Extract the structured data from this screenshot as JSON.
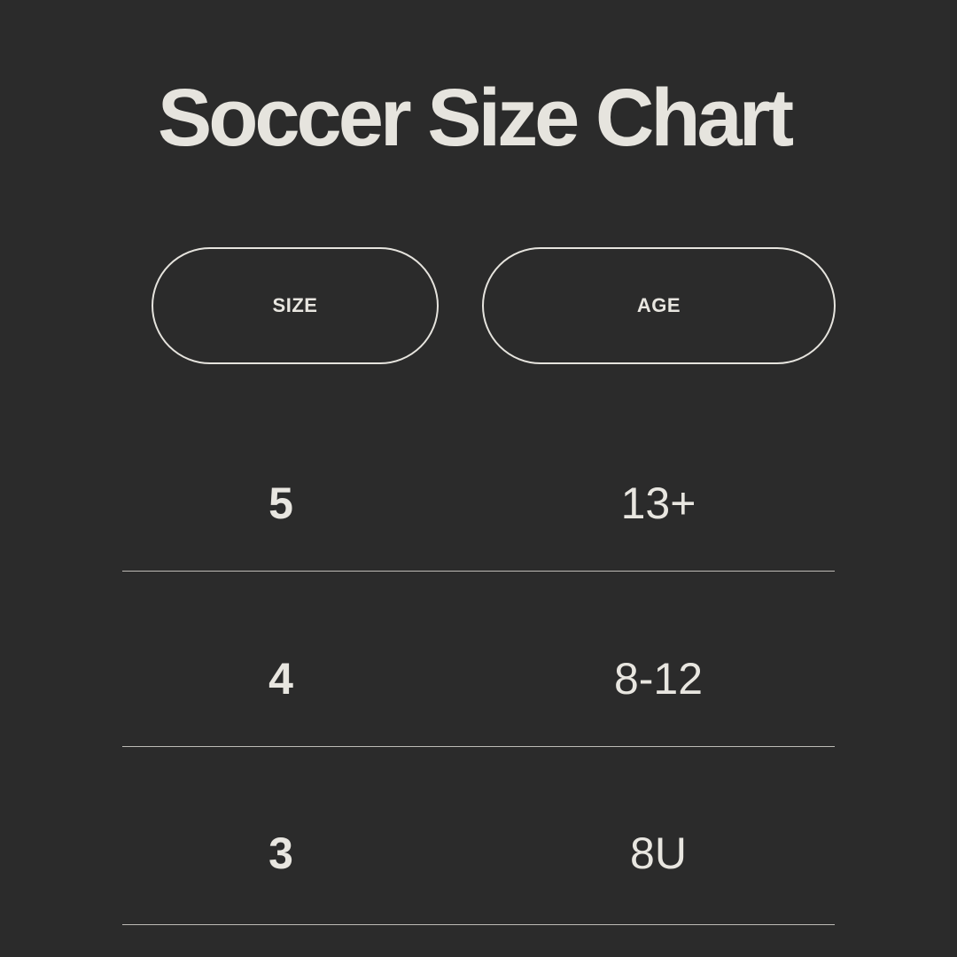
{
  "title": "Soccer Size Chart",
  "headers": {
    "size": "SIZE",
    "age": "AGE"
  },
  "rows": [
    {
      "size": "5",
      "age": "13+"
    },
    {
      "size": "4",
      "age": "8-12"
    },
    {
      "size": "3",
      "age": "8U"
    }
  ],
  "colors": {
    "background": "#2b2b2b",
    "text": "#e8e6e0"
  }
}
